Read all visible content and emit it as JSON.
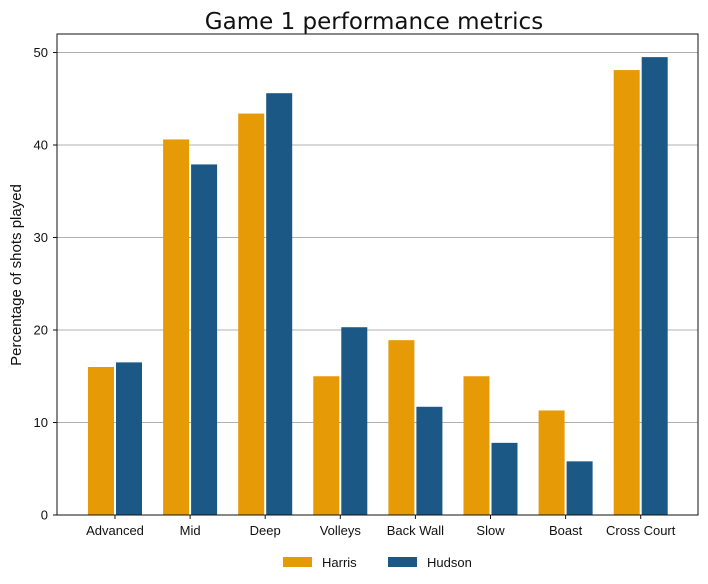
{
  "chart_data": {
    "type": "bar",
    "title": "Game 1 performance metrics",
    "xlabel": "",
    "ylabel": "Percentage of shots played",
    "categories": [
      "Advanced",
      "Mid",
      "Deep",
      "Volleys",
      "Back Wall",
      "Slow",
      "Boast",
      "Cross Court"
    ],
    "series": [
      {
        "name": "Harris",
        "color": "#E69A06",
        "values": [
          16.0,
          40.6,
          43.4,
          15.0,
          18.9,
          15.0,
          11.3,
          48.1
        ]
      },
      {
        "name": "Hudson",
        "color": "#1C5885",
        "values": [
          16.5,
          37.9,
          45.6,
          20.3,
          11.7,
          7.8,
          5.8,
          49.5
        ]
      }
    ],
    "ylim": [
      0,
      52
    ],
    "yticks": [
      0,
      10,
      20,
      30,
      40,
      50
    ],
    "grid": "horizontal",
    "legend_position": "bottom-center"
  }
}
